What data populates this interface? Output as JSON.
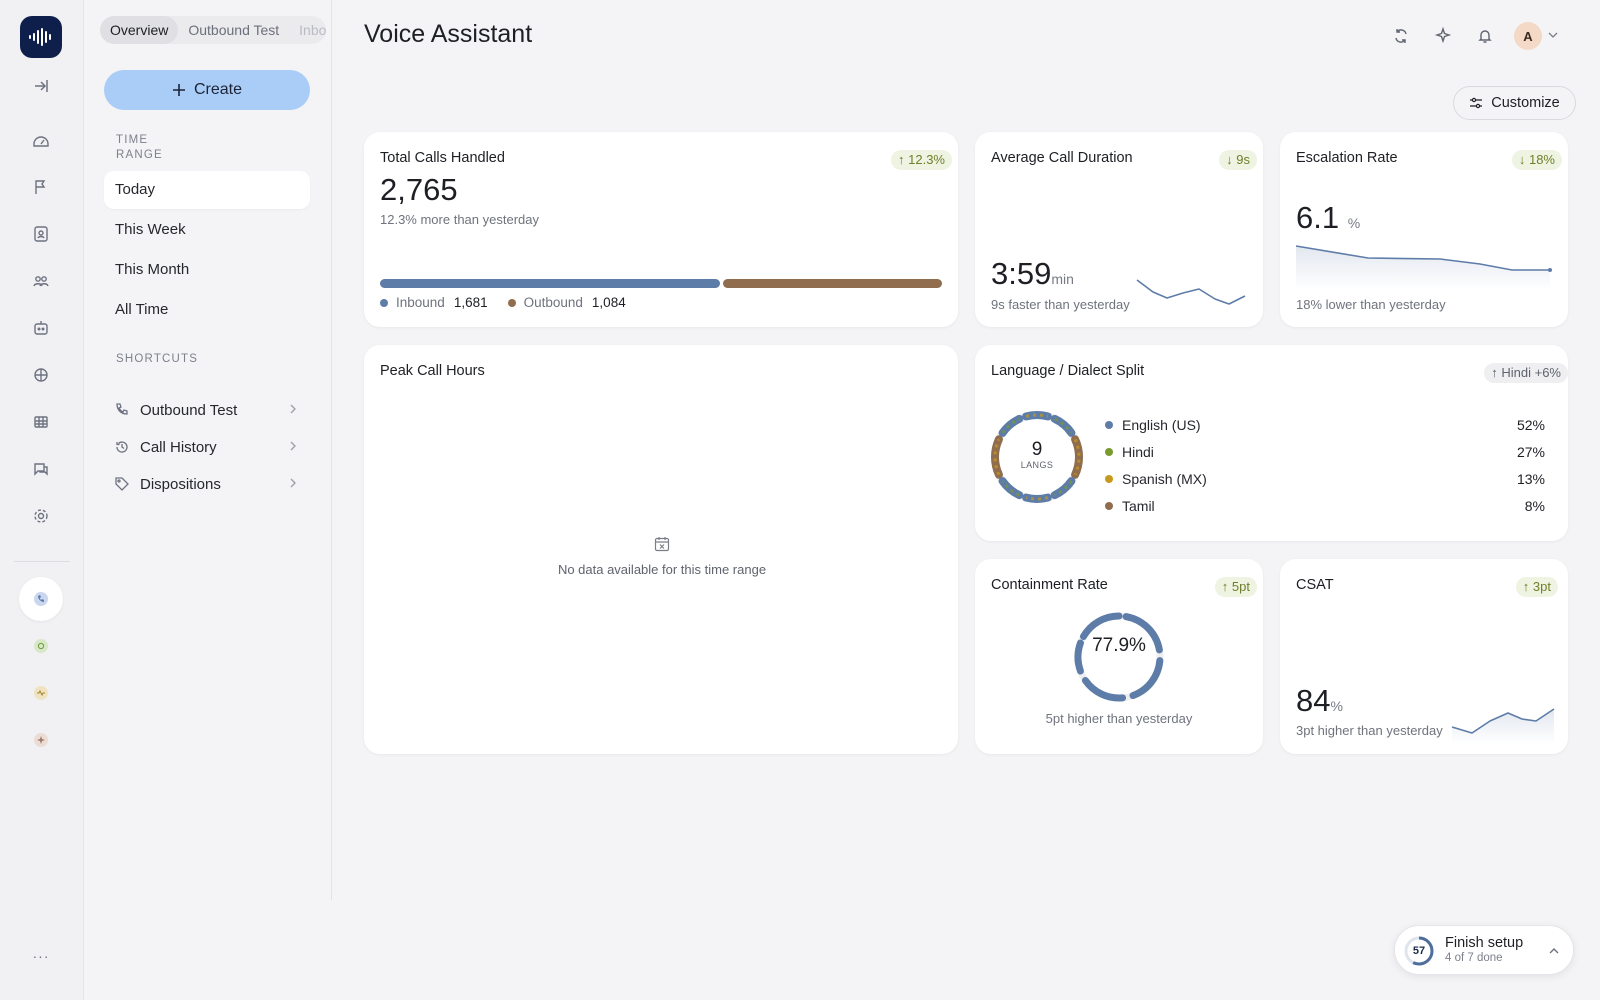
{
  "header": {
    "title": "Voice Assistant",
    "avatar_initial": "A",
    "customize_label": "Customize"
  },
  "sidebar": {
    "tabs": [
      {
        "label": "Overview"
      },
      {
        "label": "Outbound Test"
      },
      {
        "label": "Inbo"
      }
    ],
    "create_label": "Create",
    "time_range_label": "TIME RANGE",
    "time_ranges": [
      {
        "label": "Today"
      },
      {
        "label": "This Week"
      },
      {
        "label": "This Month"
      },
      {
        "label": "All Time"
      }
    ],
    "shortcuts_label": "SHORTCUTS",
    "shortcuts": [
      {
        "label": "Outbound Test",
        "icon": "phone-icon"
      },
      {
        "label": "Call History",
        "icon": "history-icon"
      },
      {
        "label": "Dispositions",
        "icon": "tag-icon"
      }
    ]
  },
  "rail": {
    "icons": [
      "dashboard-icon",
      "campaign-flag-icon",
      "contacts-icon",
      "team-icon",
      "bot-icon",
      "brain-icon",
      "table-icon",
      "chat-icon",
      "settings-icon"
    ],
    "apps": [
      "voice-app-icon",
      "whatsapp-app-icon",
      "activity-app-icon",
      "spark-app-icon"
    ],
    "more": "···"
  },
  "cards": {
    "total_calls": {
      "title": "Total Calls Handled",
      "badge": "12.3%",
      "value": "2,765",
      "subtitle": "12.3% more than yesterday",
      "inbound_label": "Inbound",
      "inbound_value": "1,681",
      "outbound_label": "Outbound",
      "outbound_value": "1,084",
      "inbound_share": 0.608,
      "colors": {
        "inbound": "#5d7ca8",
        "outbound": "#8f6d4e"
      }
    },
    "avg_duration": {
      "title": "Average Call Duration",
      "badge": "9s",
      "value": "3:59",
      "unit": "min",
      "subtitle": "9s faster than yesterday"
    },
    "escalation": {
      "title": "Escalation Rate",
      "badge": "18%",
      "value": "6.1",
      "unit": "%",
      "subtitle": "18% lower than yesterday"
    },
    "peak_hours": {
      "title": "Peak Call Hours",
      "empty_text": "No data available for this time range"
    },
    "language": {
      "title": "Language / Dialect Split",
      "badge": "Hindi +6%",
      "center_value": "9",
      "center_label": "LANGS",
      "items": [
        {
          "label": "English (US)",
          "pct": "52%",
          "color": "#5d7ca8"
        },
        {
          "label": "Hindi",
          "pct": "27%",
          "color": "#7a9a2e"
        },
        {
          "label": "Spanish (MX)",
          "pct": "13%",
          "color": "#c79a1d"
        },
        {
          "label": "Tamil",
          "pct": "8%",
          "color": "#8f6d4e"
        }
      ]
    },
    "containment": {
      "title": "Containment Rate",
      "badge": "5pt",
      "value": "77.9%",
      "fraction": 0.779,
      "subtitle": "5pt higher than yesterday"
    },
    "csat": {
      "title": "CSAT",
      "badge": "3pt",
      "value": "84",
      "unit": "%",
      "subtitle": "3pt higher than yesterday"
    }
  },
  "finish_setup": {
    "title": "Finish setup",
    "subtitle": "4 of 7 done",
    "score": "57",
    "fraction": 0.571
  }
}
